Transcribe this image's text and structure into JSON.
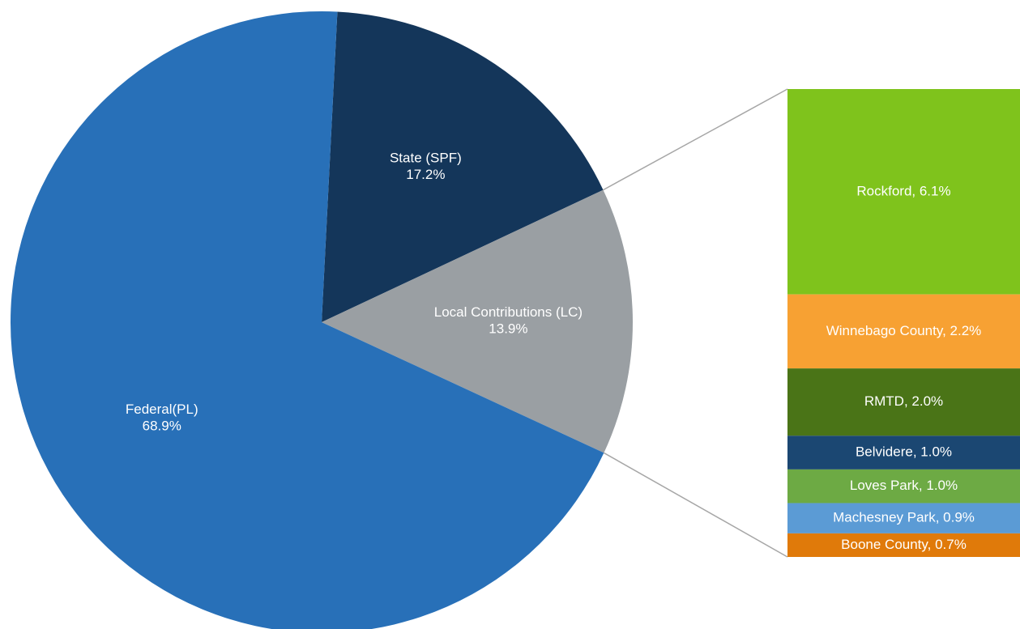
{
  "chart_data": {
    "type": "pie",
    "categories": [
      "State (SPF)",
      "Local Contributions (LC)",
      "Federal(PL)"
    ],
    "values": [
      17.2,
      13.9,
      68.9
    ],
    "value_labels": [
      "17.2%",
      "13.9%",
      "68.9%"
    ],
    "colors": [
      "#14365a",
      "#9a9fa3",
      "#2870b8"
    ],
    "breakdown": {
      "labels": [
        "Rockford, 6.1%",
        "Winnebago County, 2.2%",
        "RMTD, 2.0%",
        "Belvidere, 1.0%",
        "Loves Park, 1.0%",
        "Machesney Park, 0.9%",
        "Boone County, 0.7%"
      ],
      "values": [
        6.1,
        2.2,
        2.0,
        1.0,
        1.0,
        0.9,
        0.7
      ],
      "colors": [
        "#7fc31c",
        "#f7a133",
        "#4a7417",
        "#1b4772",
        "#6daa44",
        "#5b9bd5",
        "#e07a0a"
      ]
    }
  }
}
